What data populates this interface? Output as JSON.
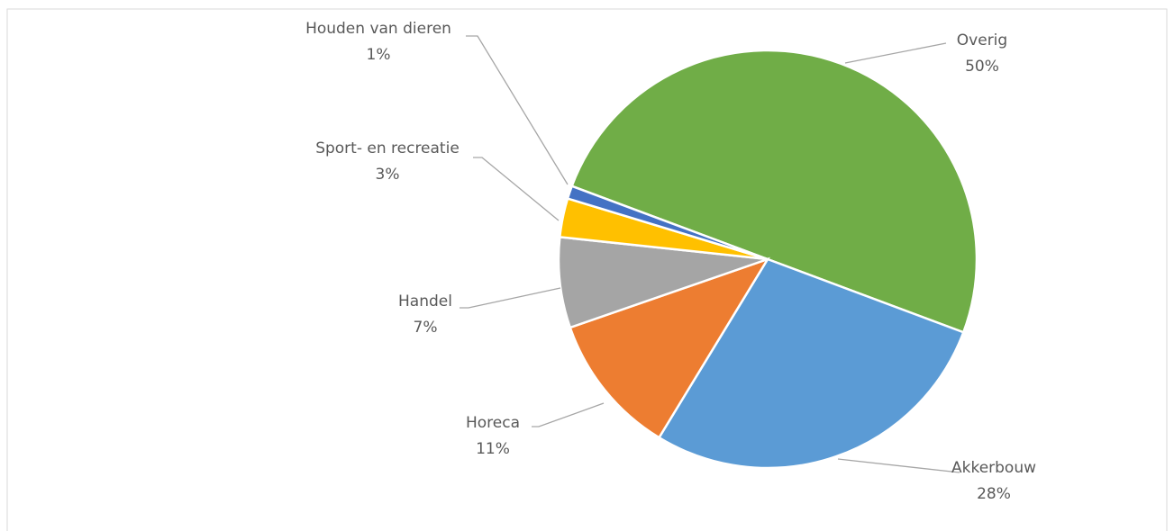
{
  "chart_data": {
    "type": "pie",
    "categories": [
      "Overig",
      "Akkerbouw",
      "Horeca",
      "Handel",
      "Sport- en recreatie",
      "Houden van dieren"
    ],
    "values": [
      50,
      28,
      11,
      7,
      3,
      1
    ],
    "value_labels": [
      "50%",
      "28%",
      "11%",
      "7%",
      "3%",
      "1%"
    ],
    "colors": [
      "#70ad47",
      "#5b9bd5",
      "#ed7d31",
      "#a5a5a5",
      "#ffc000",
      "#4472c4"
    ]
  }
}
